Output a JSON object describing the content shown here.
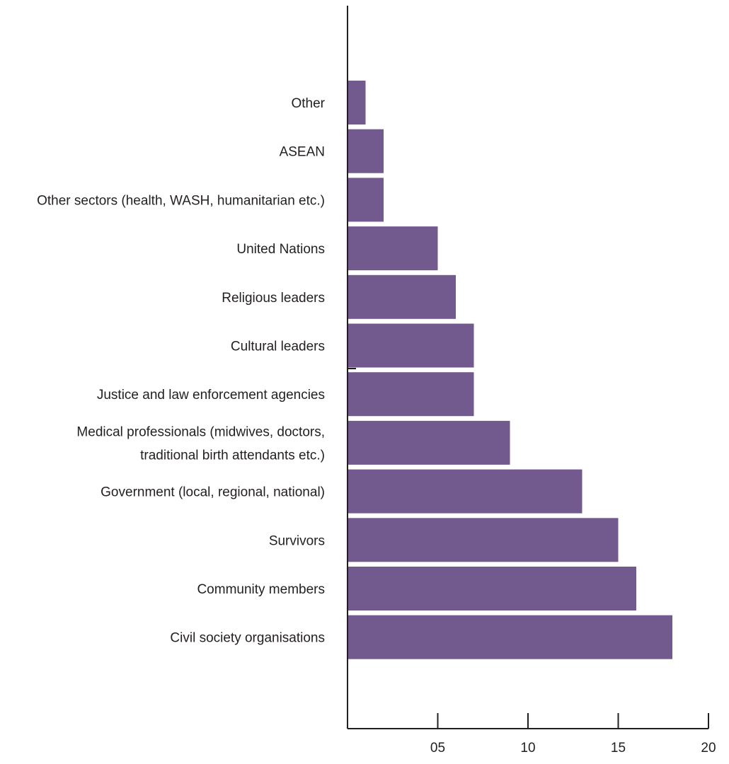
{
  "chart_data": {
    "type": "bar",
    "orientation": "horizontal",
    "categories": [
      "Other",
      "ASEAN",
      "Other sectors (health, WASH, humanitarian etc.)",
      "United Nations",
      "Religious leaders",
      "Cultural leaders",
      "Justice and law enforcement agencies",
      "Medical professionals (midwives, doctors,\ntraditional birth attendants etc.)",
      "Government (local, regional, national)",
      "Survivors",
      "Community members",
      "Civil society organisations"
    ],
    "values": [
      1,
      2,
      2,
      5,
      6,
      7,
      7,
      9,
      13,
      15,
      16,
      18
    ],
    "xlim": [
      0,
      20
    ],
    "xticks": [
      5,
      10,
      15,
      20
    ],
    "xtick_labels": [
      "05",
      "10",
      "15",
      "20"
    ],
    "title": "",
    "xlabel": "",
    "ylabel": "",
    "grid": false,
    "legend": "none",
    "bar_color": "#725a8f"
  }
}
